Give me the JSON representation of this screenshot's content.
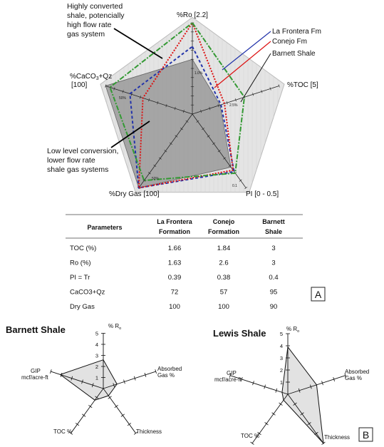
{
  "chart_data": [
    {
      "type": "radar",
      "axes": [
        {
          "label": "%Ro [2.2]"
        },
        {
          "label": "%TOC [5]"
        },
        {
          "label": "PI [0 - 0.5]"
        },
        {
          "label": "%Dry Gas [100]"
        },
        {
          "label": "%CaCO3+Qz\n[100]"
        }
      ],
      "inner_tick_labels": [
        "1.0%",
        "2.5%",
        "0.1",
        "50%",
        "50%"
      ],
      "series": [
        {
          "name": "La Frontera Fm",
          "color": "#2233aa",
          "dash": "4,3",
          "values": [
            0.74,
            0.33,
            0.78,
            1.0,
            0.72
          ]
        },
        {
          "name": "Conejo Fm",
          "color": "#dd1111",
          "dash": "2,2",
          "values": [
            1.0,
            0.37,
            0.76,
            1.0,
            0.57
          ]
        },
        {
          "name": "Barnett Shale",
          "color": "#339933",
          "dash": "7,2,2,2",
          "values": [
            1.0,
            0.6,
            0.8,
            0.9,
            0.95
          ]
        }
      ],
      "annotations": [
        {
          "text": [
            "Highly converted",
            "shale, potencially",
            "high flow rate",
            "gas system"
          ]
        },
        {
          "text": [
            "Low level conversion,",
            "lower flow rate",
            "shale gas systems"
          ]
        }
      ]
    },
    {
      "type": "table",
      "columns": [
        [
          "Parameters"
        ],
        [
          "La Frontera",
          "Formation"
        ],
        [
          "Conejo",
          "Formation"
        ],
        [
          "Barnett",
          "Shale"
        ]
      ],
      "rows": [
        [
          "TOC (%)",
          "1.66",
          "1.84",
          "3"
        ],
        [
          "Ro (%)",
          "1.63",
          "2.6",
          "3"
        ],
        [
          "PI = Tr",
          "0.39",
          "0.38",
          "0.4"
        ],
        [
          "CaCO3+Qz",
          "72",
          "57",
          "95"
        ],
        [
          "Dry Gas",
          "100",
          "100",
          "90"
        ]
      ],
      "panel_label": "A"
    },
    {
      "type": "radar",
      "title": "Barnett Shale",
      "axes": [
        "% R",
        "Absorbed\nGas %",
        "Thickness",
        "TOC %",
        "GIP\nmcf/acre-ft"
      ],
      "axis_max": 5,
      "tick_labels": [
        "1",
        "2",
        "3",
        "4",
        "5"
      ],
      "values": [
        2.6,
        1.3,
        0.8,
        1.3,
        4.1
      ]
    },
    {
      "type": "radar",
      "title": "Lewis Shale",
      "axes": [
        "% R",
        "Absorbed\nGas %",
        "Thickness",
        "TOC %",
        "GIP\nmcf/acre-ft"
      ],
      "axis_max": 5,
      "tick_labels": [
        "1",
        "2",
        "3",
        "4",
        "5"
      ],
      "values": [
        3.9,
        2.5,
        5.0,
        0.6,
        0.5
      ],
      "panel_label": "B"
    }
  ]
}
